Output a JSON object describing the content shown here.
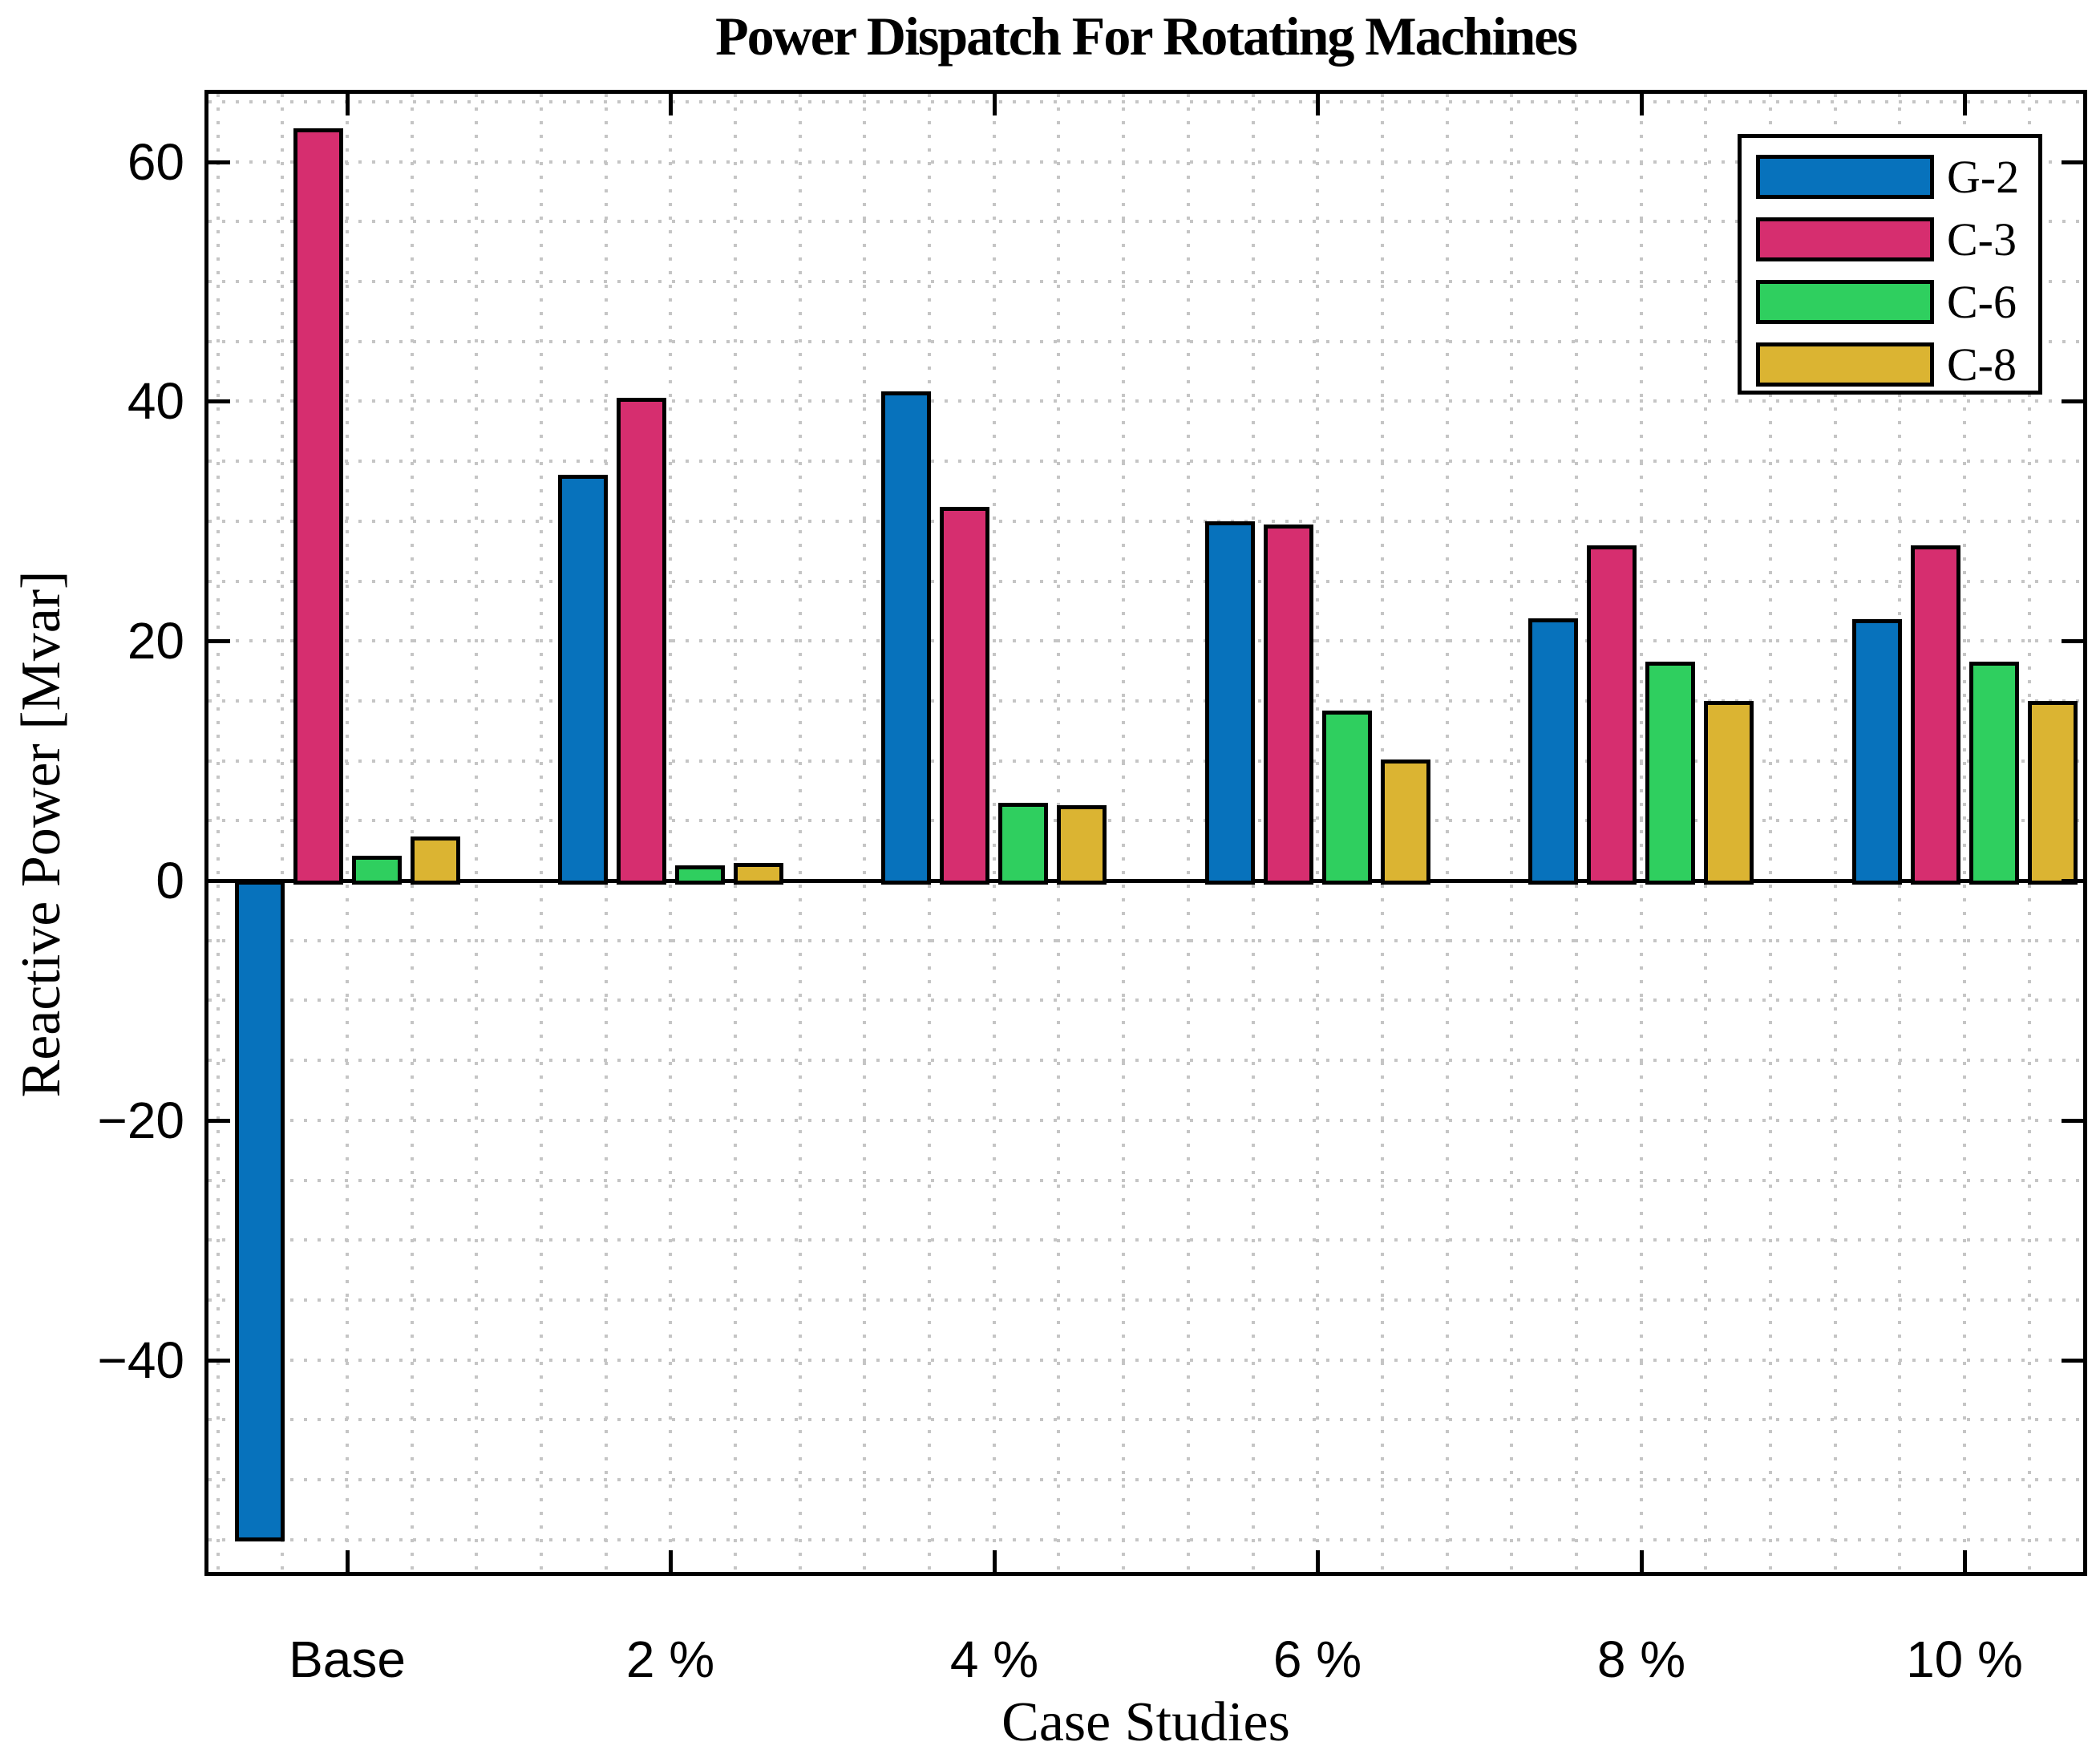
{
  "chart_data": {
    "type": "bar",
    "title": "Power Dispatch For Rotating Machines",
    "xlabel": "Case Studies",
    "ylabel": "Reactive Power [Mvar]",
    "categories": [
      "Base",
      "2 %",
      "4 %",
      "6 %",
      "8 %",
      "10 %"
    ],
    "series": [
      {
        "name": "G-2",
        "color": "#0772BC",
        "values": [
          -54.8,
          33.9,
          40.8,
          30.0,
          21.9,
          21.8
        ]
      },
      {
        "name": "C-3",
        "color": "#D62E6F",
        "values": [
          62.8,
          40.3,
          31.2,
          29.7,
          28.0,
          28.0
        ]
      },
      {
        "name": "C-6",
        "color": "#2FCF5F",
        "values": [
          2.1,
          1.3,
          6.5,
          14.2,
          18.3,
          18.3
        ]
      },
      {
        "name": "C-8",
        "color": "#DBB432",
        "values": [
          3.7,
          1.5,
          6.3,
          10.1,
          15.0,
          15.0
        ]
      }
    ],
    "ylim": [
      -58,
      66
    ],
    "y_major_ticks": [
      60,
      40,
      20,
      0,
      -20,
      -40
    ],
    "y_tick_labels": [
      "60",
      "40",
      "20",
      "0",
      "−20",
      "−40"
    ],
    "y_minor_step": 5,
    "grid": "dotted minor grid on both axes",
    "legend_position": "top-right inside plot",
    "bar_edge_color": "#000000"
  },
  "legend": {
    "items": [
      "G-2",
      "C-3",
      "C-6",
      "C-8"
    ]
  }
}
